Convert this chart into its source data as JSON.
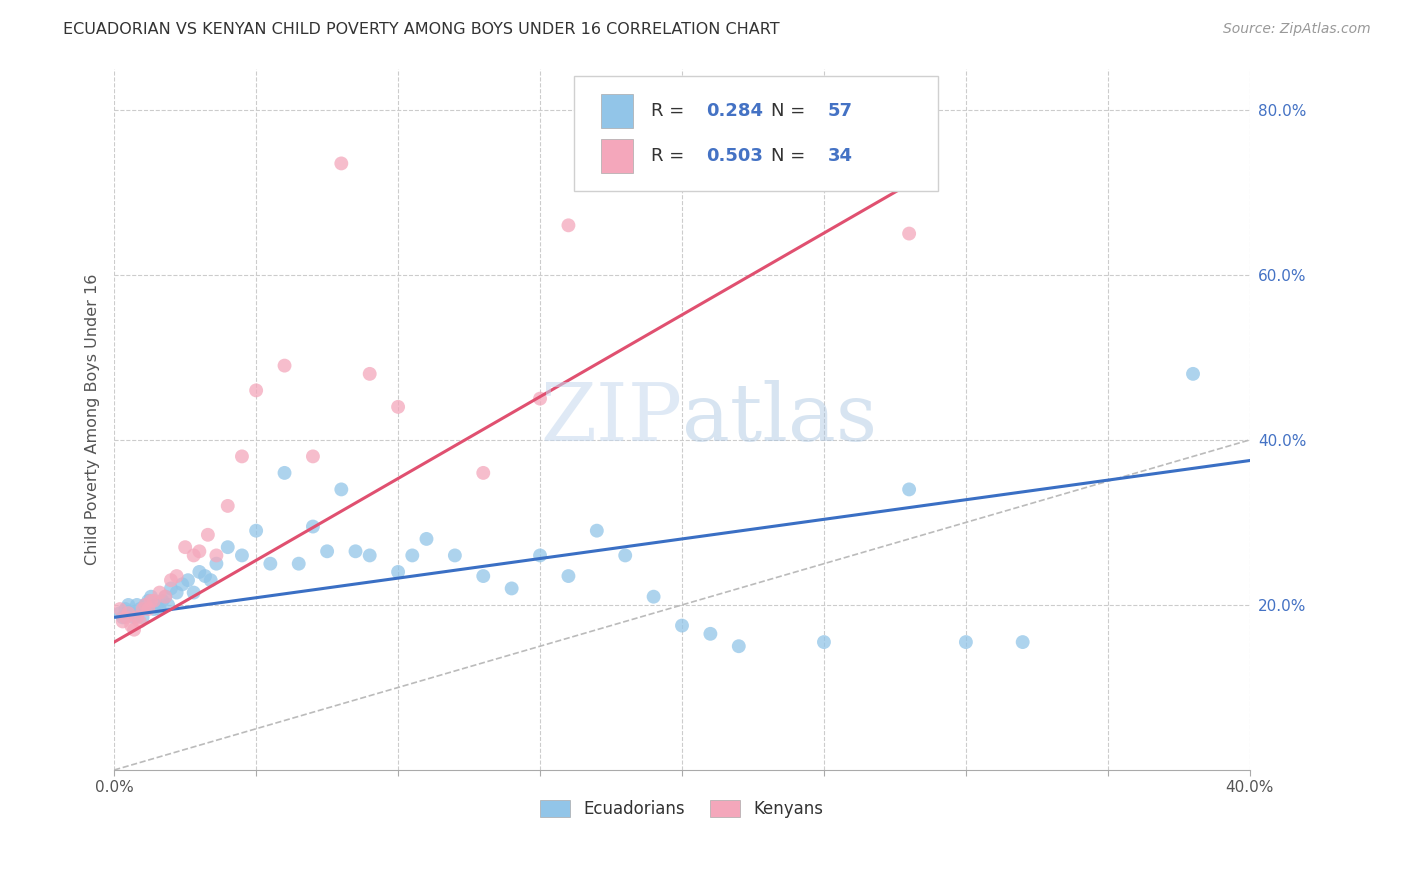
{
  "title": "ECUADORIAN VS KENYAN CHILD POVERTY AMONG BOYS UNDER 16 CORRELATION CHART",
  "source": "Source: ZipAtlas.com",
  "ylabel": "Child Poverty Among Boys Under 16",
  "xlim": [
    0.0,
    0.4
  ],
  "ylim": [
    0.0,
    0.85
  ],
  "xticks": [
    0.0,
    0.05,
    0.1,
    0.15,
    0.2,
    0.25,
    0.3,
    0.35,
    0.4
  ],
  "yticks_right": [
    0.2,
    0.4,
    0.6,
    0.8
  ],
  "ytick_right_labels": [
    "20.0%",
    "40.0%",
    "60.0%",
    "80.0%"
  ],
  "blue_color": "#92c5e8",
  "pink_color": "#f4a7bb",
  "blue_line_color": "#3a6fc4",
  "pink_line_color": "#e05070",
  "R_blue": 0.284,
  "N_blue": 57,
  "R_pink": 0.503,
  "N_pink": 34,
  "watermark_zip": "ZIP",
  "watermark_atlas": "atlas",
  "blue_scatter_x": [
    0.002,
    0.003,
    0.004,
    0.005,
    0.006,
    0.007,
    0.008,
    0.009,
    0.01,
    0.011,
    0.012,
    0.013,
    0.014,
    0.015,
    0.016,
    0.017,
    0.018,
    0.019,
    0.02,
    0.022,
    0.024,
    0.026,
    0.028,
    0.03,
    0.032,
    0.034,
    0.036,
    0.04,
    0.045,
    0.05,
    0.055,
    0.06,
    0.065,
    0.07,
    0.075,
    0.08,
    0.085,
    0.09,
    0.1,
    0.105,
    0.11,
    0.12,
    0.13,
    0.14,
    0.15,
    0.16,
    0.17,
    0.18,
    0.19,
    0.2,
    0.21,
    0.22,
    0.25,
    0.28,
    0.3,
    0.32,
    0.38
  ],
  "blue_scatter_y": [
    0.19,
    0.185,
    0.195,
    0.2,
    0.19,
    0.185,
    0.2,
    0.195,
    0.185,
    0.2,
    0.205,
    0.21,
    0.195,
    0.2,
    0.195,
    0.205,
    0.21,
    0.2,
    0.22,
    0.215,
    0.225,
    0.23,
    0.215,
    0.24,
    0.235,
    0.23,
    0.25,
    0.27,
    0.26,
    0.29,
    0.25,
    0.36,
    0.25,
    0.295,
    0.265,
    0.34,
    0.265,
    0.26,
    0.24,
    0.26,
    0.28,
    0.26,
    0.235,
    0.22,
    0.26,
    0.235,
    0.29,
    0.26,
    0.21,
    0.175,
    0.165,
    0.15,
    0.155,
    0.34,
    0.155,
    0.155,
    0.48
  ],
  "pink_scatter_x": [
    0.002,
    0.003,
    0.004,
    0.005,
    0.006,
    0.007,
    0.008,
    0.009,
    0.01,
    0.011,
    0.012,
    0.013,
    0.014,
    0.016,
    0.018,
    0.02,
    0.022,
    0.025,
    0.028,
    0.03,
    0.033,
    0.036,
    0.04,
    0.045,
    0.05,
    0.06,
    0.07,
    0.08,
    0.09,
    0.1,
    0.13,
    0.15,
    0.16,
    0.28
  ],
  "pink_scatter_y": [
    0.195,
    0.18,
    0.185,
    0.19,
    0.175,
    0.17,
    0.185,
    0.18,
    0.195,
    0.2,
    0.195,
    0.205,
    0.205,
    0.215,
    0.21,
    0.23,
    0.235,
    0.27,
    0.26,
    0.265,
    0.285,
    0.26,
    0.32,
    0.38,
    0.46,
    0.49,
    0.38,
    0.735,
    0.48,
    0.44,
    0.36,
    0.45,
    0.66,
    0.65
  ],
  "blue_trend_x": [
    0.0,
    0.4
  ],
  "blue_trend_y": [
    0.185,
    0.375
  ],
  "pink_trend_x": [
    0.0,
    0.285
  ],
  "pink_trend_y": [
    0.155,
    0.72
  ],
  "ref_line_x": [
    0.0,
    0.85
  ],
  "ref_line_y": [
    0.0,
    0.85
  ]
}
